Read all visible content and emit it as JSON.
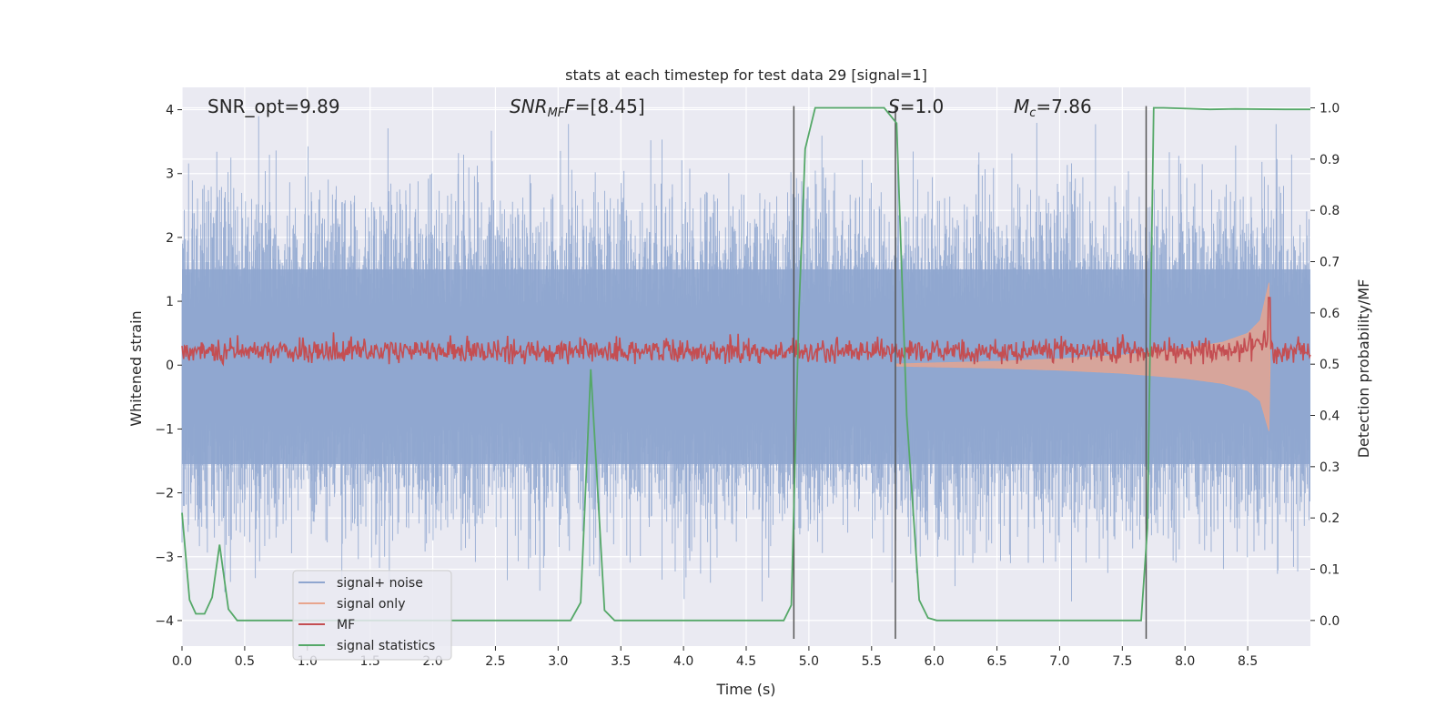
{
  "chart_data": {
    "type": "line",
    "title": "stats at each timestep for test data 29 [signal=1]",
    "xlabel": "Time (s)",
    "ylabel_left": "Whitened strain",
    "ylabel_right": "Detection probability/MF",
    "xlim": [
      0.0,
      9.0
    ],
    "ylim_left": [
      -4.4,
      4.35
    ],
    "ylim_right": [
      -0.05,
      1.04
    ],
    "x_ticks": [
      "0.0",
      "0.5",
      "1.0",
      "1.5",
      "2.0",
      "2.5",
      "3.0",
      "3.5",
      "4.0",
      "4.5",
      "5.0",
      "5.5",
      "6.0",
      "6.5",
      "7.0",
      "7.5",
      "8.0",
      "8.5"
    ],
    "y_left_ticks": [
      "4",
      "3",
      "2",
      "1",
      "0",
      "−1",
      "−2",
      "−3",
      "−4"
    ],
    "y_right_ticks": [
      "1.0",
      "0.9",
      "0.8",
      "0.7",
      "0.6",
      "0.5",
      "0.4",
      "0.3",
      "0.2",
      "0.1",
      "0.0"
    ],
    "grid": true,
    "legend_position": "lower-left",
    "annotations": {
      "snr_opt": "SNR_opt=9.89",
      "snr_mf_italic": "SNR",
      "snr_mf_sub": "MF",
      "snr_mf_italic2": "F",
      "snr_mf_value": "=[8.45]",
      "s_italic": "S",
      "s_value": "=1.0",
      "mc_italic": "M",
      "mc_sub": "c",
      "mc_value": "=7.86"
    },
    "vertical_markers_x": [
      4.88,
      5.69,
      7.69
    ],
    "series": [
      {
        "name": "signal+ noise",
        "color": "#8fa6cf",
        "axis": "left",
        "envelope_approx": [
          -3.7,
          3.9
        ]
      },
      {
        "name": "signal only",
        "color": "#e8a58d",
        "axis": "left",
        "envelope_x": [
          5.7,
          6.5,
          7.0,
          7.5,
          8.0,
          8.3,
          8.5,
          8.6,
          8.67,
          8.68
        ],
        "envelope_amp": [
          0.02,
          0.06,
          0.1,
          0.16,
          0.26,
          0.36,
          0.5,
          0.7,
          1.3,
          0.0
        ]
      },
      {
        "name": "MF",
        "color": "#c44e52",
        "axis": "right",
        "approx_range": [
          0.5,
          0.58
        ],
        "peak": {
          "x": 8.67,
          "y": 0.63
        }
      },
      {
        "name": "signal statistics",
        "color": "#55a868",
        "axis": "right",
        "x": [
          0.0,
          0.06,
          0.11,
          0.18,
          0.24,
          0.3,
          0.37,
          0.44,
          3.1,
          3.18,
          3.26,
          3.37,
          3.45,
          4.8,
          4.86,
          4.92,
          4.97,
          5.05,
          5.1,
          5.6,
          5.7,
          5.78,
          5.88,
          5.95,
          6.02,
          7.65,
          7.7,
          7.75,
          7.83,
          8.2,
          8.4,
          8.8,
          9.0
        ],
        "y": [
          0.21,
          0.04,
          0.013,
          0.013,
          0.045,
          0.148,
          0.022,
          0.0,
          0.0,
          0.035,
          0.49,
          0.02,
          0.0,
          0.0,
          0.03,
          0.6,
          0.92,
          1.0,
          1.0,
          1.0,
          0.97,
          0.4,
          0.04,
          0.005,
          0.0,
          0.0,
          0.18,
          1.0,
          1.0,
          0.997,
          0.998,
          0.997,
          0.997
        ]
      }
    ]
  }
}
